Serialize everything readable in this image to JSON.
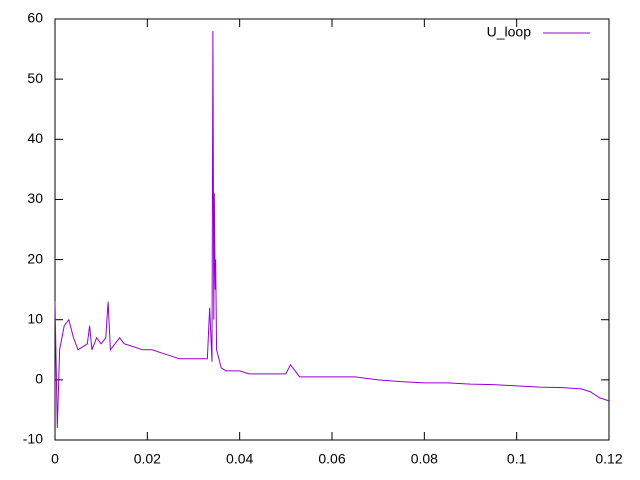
{
  "chart_data": {
    "type": "line",
    "x": [
      0,
      0.0005,
      0.001,
      0.0015,
      0.002,
      0.003,
      0.004,
      0.005,
      0.006,
      0.007,
      0.0075,
      0.008,
      0.009,
      0.01,
      0.011,
      0.0115,
      0.012,
      0.013,
      0.014,
      0.015,
      0.017,
      0.019,
      0.021,
      0.023,
      0.025,
      0.027,
      0.029,
      0.031,
      0.033,
      0.0335,
      0.034,
      0.0342,
      0.0344,
      0.0345,
      0.0347,
      0.0348,
      0.035,
      0.036,
      0.037,
      0.038,
      0.04,
      0.042,
      0.045,
      0.048,
      0.05,
      0.051,
      0.052,
      0.053,
      0.056,
      0.06,
      0.065,
      0.07,
      0.075,
      0.08,
      0.085,
      0.09,
      0.095,
      0.1,
      0.105,
      0.11,
      0.114,
      0.116,
      0.118,
      0.12
    ],
    "series": [
      {
        "name": "U_loop",
        "color": "#9400d3",
        "values": [
          13,
          -8,
          5,
          7,
          9,
          10,
          7,
          5,
          5.5,
          6,
          9,
          5,
          7,
          6,
          7,
          13,
          5,
          6,
          7,
          6,
          5.5,
          5,
          5,
          4.5,
          4,
          3.5,
          3.5,
          3.5,
          3.5,
          12,
          3,
          58,
          10,
          31,
          15,
          20,
          5,
          2,
          1.5,
          1.5,
          1.5,
          1,
          1,
          1,
          1,
          2.5,
          1.5,
          0.5,
          0.5,
          0.5,
          0.5,
          0,
          -0.3,
          -0.5,
          -0.5,
          -0.7,
          -0.8,
          -1,
          -1.2,
          -1.3,
          -1.5,
          -2,
          -3,
          -3.5
        ]
      }
    ],
    "xlim": [
      0,
      0.12
    ],
    "xticks": [
      0,
      0.02,
      0.04,
      0.06,
      0.08,
      0.1,
      0.12
    ],
    "ylim": [
      -10,
      60
    ],
    "yticks": [
      -10,
      0,
      10,
      20,
      30,
      40,
      50,
      60
    ],
    "grid": false,
    "legend": "top-right"
  }
}
